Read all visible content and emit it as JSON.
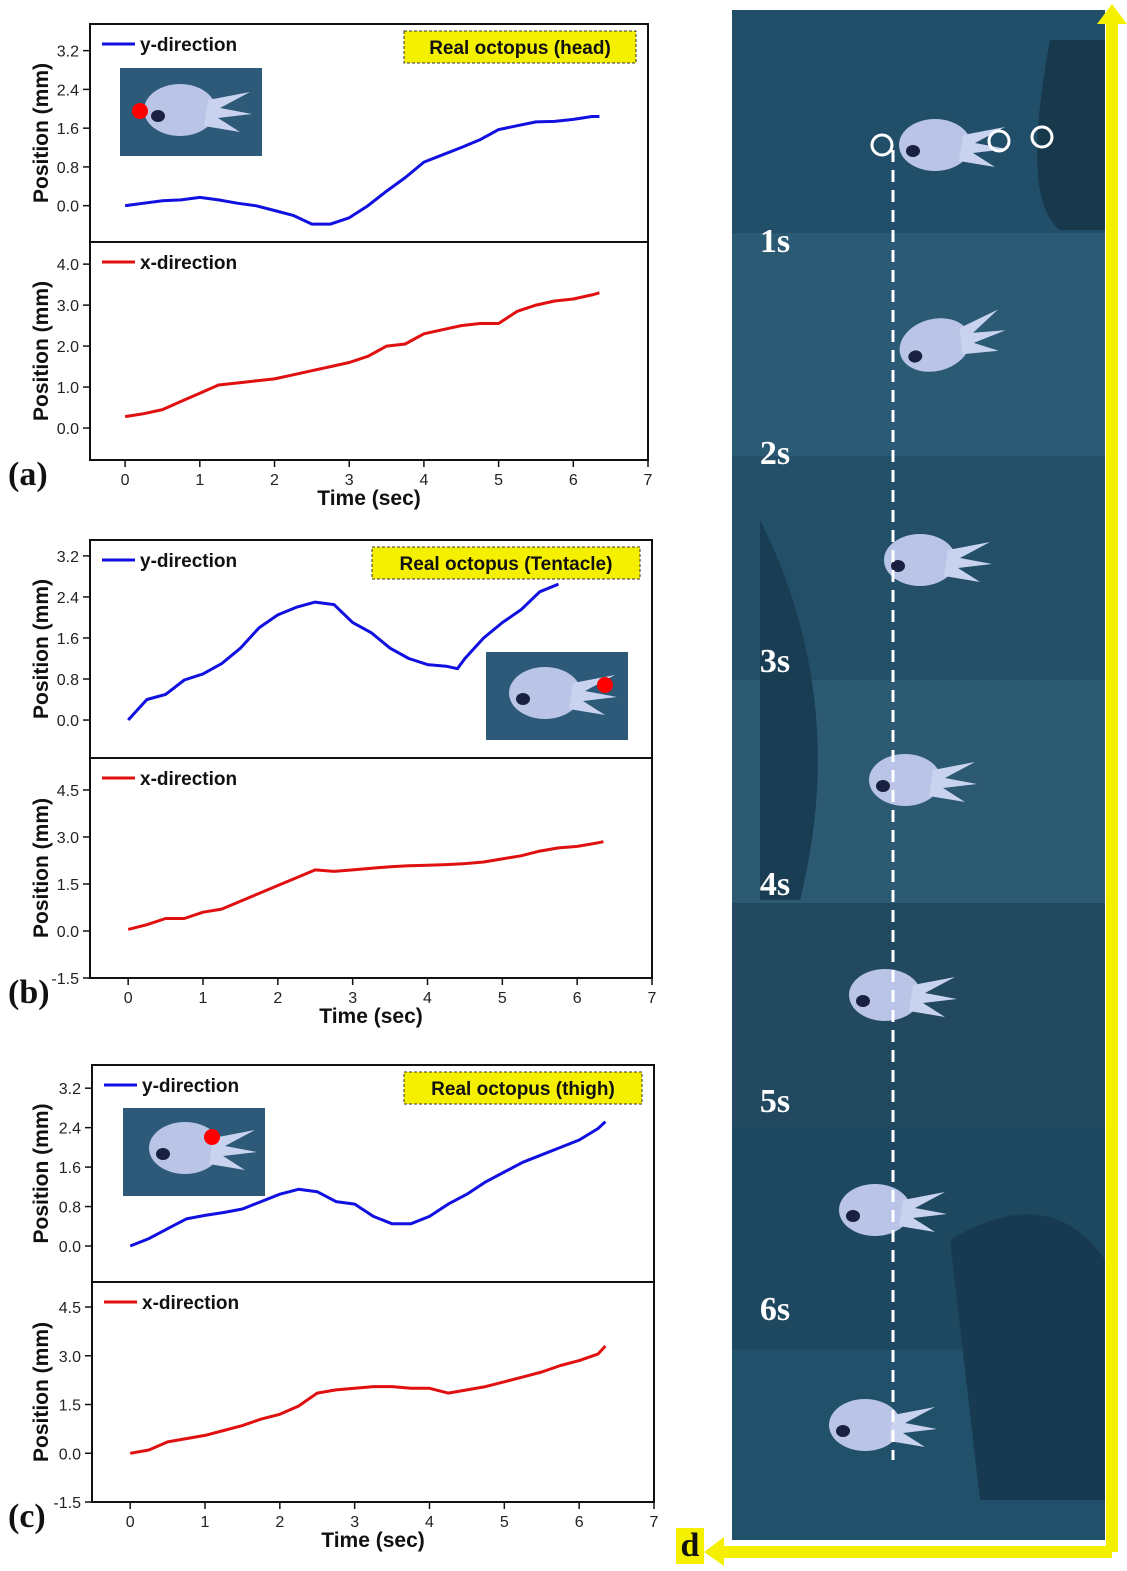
{
  "chart_data": [
    {
      "type": "line",
      "ylabel": "Position (mm)",
      "annotation": "Real octopus (head)",
      "x": [
        0,
        0.25,
        0.5,
        0.75,
        1,
        1.25,
        1.5,
        1.75,
        2,
        2.25,
        2.5,
        2.75,
        3,
        3.25,
        3.5,
        3.75,
        4,
        4.25,
        4.5,
        4.75,
        5,
        5.25,
        5.5,
        5.75,
        6,
        6.25,
        6.35
      ],
      "series": [
        {
          "name": "y-direction",
          "color": "#1010e0",
          "values": [
            0,
            0.05,
            0.1,
            0.12,
            0.17,
            0.12,
            0.05,
            0,
            -0.1,
            -0.2,
            -0.38,
            -0.38,
            -0.25,
            0,
            0.3,
            0.58,
            0.9,
            1.05,
            1.2,
            1.36,
            1.57,
            1.65,
            1.73,
            1.74,
            1.78,
            1.84,
            1.84
          ]
        }
      ],
      "xlim": [
        -0.47,
        7
      ],
      "ylim": [
        -0.75,
        3.75
      ],
      "yticks": [
        {
          "value": 0,
          "label": "0.0"
        },
        0.8,
        1.6,
        2.4,
        3.2
      ]
    },
    {
      "type": "line",
      "ylabel": "Position (mm)",
      "xlabel": "Time (sec)",
      "panel_label": "(a)",
      "x": [
        0,
        0.25,
        0.5,
        0.75,
        1,
        1.25,
        1.5,
        1.75,
        2,
        2.25,
        2.5,
        2.75,
        3,
        3.25,
        3.5,
        3.75,
        4,
        4.25,
        4.5,
        4.75,
        5,
        5.25,
        5.5,
        5.75,
        6,
        6.25,
        6.35
      ],
      "series": [
        {
          "name": "x-direction",
          "color": "#e01010",
          "values": [
            0.28,
            0.35,
            0.45,
            0.65,
            0.85,
            1.05,
            1.1,
            1.15,
            1.2,
            1.3,
            1.4,
            1.5,
            1.6,
            1.75,
            2.0,
            2.05,
            2.3,
            2.4,
            2.5,
            2.55,
            2.55,
            2.85,
            3.0,
            3.1,
            3.15,
            3.25,
            3.3
          ]
        }
      ],
      "xlim": [
        -0.47,
        7
      ],
      "ylim": [
        -0.78,
        4.54
      ],
      "xticks": [
        0,
        1,
        2,
        3,
        4,
        5,
        6,
        7
      ],
      "yticks": [
        {
          "value": 0,
          "label": "0.0"
        },
        {
          "value": 1,
          "label": "1.0"
        },
        {
          "value": 2,
          "label": "2.0"
        },
        {
          "value": 3,
          "label": "3.0"
        },
        {
          "value": 4,
          "label": "4.0"
        }
      ]
    },
    {
      "type": "line",
      "ylabel": "Position (mm)",
      "annotation": "Real octopus (Tentacle)",
      "x": [
        0,
        0.25,
        0.5,
        0.75,
        1,
        1.25,
        1.5,
        1.75,
        2,
        2.25,
        2.5,
        2.75,
        3,
        3.25,
        3.5,
        3.75,
        4,
        4.25,
        4.4,
        4.5,
        4.75,
        5,
        5.25,
        5.5,
        5.75
      ],
      "series": [
        {
          "name": "y-direction",
          "color": "#1010e0",
          "values": [
            0,
            0.4,
            0.5,
            0.78,
            0.9,
            1.1,
            1.4,
            1.8,
            2.05,
            2.2,
            2.3,
            2.25,
            1.9,
            1.7,
            1.4,
            1.2,
            1.08,
            1.05,
            1.0,
            1.2,
            1.6,
            1.9,
            2.15,
            2.5,
            2.65
          ]
        }
      ],
      "xlim": [
        -0.51,
        7
      ],
      "ylim": [
        -0.74,
        3.51
      ],
      "yticks": [
        {
          "value": 0,
          "label": "0.0"
        },
        0.8,
        1.6,
        2.4,
        3.2
      ]
    },
    {
      "type": "line",
      "ylabel": "Position (mm)",
      "xlabel": "Time (sec)",
      "panel_label": "(b)",
      "x": [
        0,
        0.25,
        0.5,
        0.75,
        1,
        1.25,
        1.5,
        1.75,
        2,
        2.25,
        2.5,
        2.75,
        3,
        3.25,
        3.5,
        3.75,
        4,
        4.25,
        4.5,
        4.75,
        5,
        5.25,
        5.5,
        5.75,
        6,
        6.25,
        6.35
      ],
      "series": [
        {
          "name": "x-direction",
          "color": "#e01010",
          "values": [
            0.05,
            0.2,
            0.4,
            0.4,
            0.6,
            0.7,
            0.95,
            1.2,
            1.45,
            1.7,
            1.95,
            1.9,
            1.95,
            2.0,
            2.05,
            2.08,
            2.1,
            2.12,
            2.15,
            2.2,
            2.3,
            2.4,
            2.55,
            2.65,
            2.7,
            2.8,
            2.85
          ]
        }
      ],
      "xlim": [
        -0.51,
        7
      ],
      "ylim": [
        -1.5,
        5.52
      ],
      "xticks": [
        0,
        1,
        2,
        3,
        4,
        5,
        6,
        7
      ],
      "yticks": [
        -1.5,
        {
          "value": 0,
          "label": "0.0"
        },
        1.5,
        {
          "value": 3,
          "label": "3.0"
        },
        4.5
      ]
    },
    {
      "type": "line",
      "ylabel": "Position (mm)",
      "annotation": "Real octopus (thigh)",
      "x": [
        0,
        0.25,
        0.5,
        0.75,
        1,
        1.25,
        1.5,
        1.75,
        2,
        2.25,
        2.5,
        2.75,
        3,
        3.25,
        3.5,
        3.75,
        4,
        4.25,
        4.5,
        4.75,
        5,
        5.25,
        5.5,
        5.75,
        6,
        6.25,
        6.35
      ],
      "series": [
        {
          "name": "y-direction",
          "color": "#1010e0",
          "values": [
            0,
            0.15,
            0.35,
            0.55,
            0.62,
            0.68,
            0.75,
            0.9,
            1.05,
            1.15,
            1.1,
            0.9,
            0.85,
            0.6,
            0.45,
            0.45,
            0.6,
            0.85,
            1.05,
            1.3,
            1.5,
            1.7,
            1.85,
            2.0,
            2.15,
            2.38,
            2.52
          ]
        }
      ],
      "xlim": [
        -0.51,
        7
      ],
      "ylim": [
        -0.73,
        3.67
      ],
      "yticks": [
        {
          "value": 0,
          "label": "0.0"
        },
        0.8,
        1.6,
        2.4,
        3.2
      ]
    },
    {
      "type": "line",
      "ylabel": "Position (mm)",
      "xlabel": "Time (sec)",
      "panel_label": "(c)",
      "x": [
        0,
        0.25,
        0.5,
        0.75,
        1,
        1.25,
        1.5,
        1.75,
        2,
        2.25,
        2.5,
        2.75,
        3,
        3.25,
        3.5,
        3.75,
        4,
        4.25,
        4.5,
        4.75,
        5,
        5.25,
        5.5,
        5.75,
        6,
        6.25,
        6.35
      ],
      "series": [
        {
          "name": "x-direction",
          "color": "#e01010",
          "values": [
            0,
            0.1,
            0.35,
            0.45,
            0.55,
            0.7,
            0.85,
            1.05,
            1.2,
            1.45,
            1.85,
            1.95,
            2.0,
            2.05,
            2.05,
            2.0,
            2.0,
            1.85,
            1.95,
            2.05,
            2.2,
            2.35,
            2.5,
            2.7,
            2.85,
            3.05,
            3.3
          ]
        }
      ],
      "xlim": [
        -0.51,
        7
      ],
      "ylim": [
        -1.5,
        5.27
      ],
      "xticks": [
        0,
        1,
        2,
        3,
        4,
        5,
        6,
        7
      ],
      "yticks": [
        -1.5,
        {
          "value": 0,
          "label": "0.0"
        },
        1.5,
        {
          "value": 3,
          "label": "3.0"
        },
        4.5
      ]
    }
  ],
  "photo_strip": {
    "label": "d",
    "time_labels": [
      "1s",
      "2s",
      "3s",
      "4s",
      "5s",
      "6s"
    ]
  }
}
